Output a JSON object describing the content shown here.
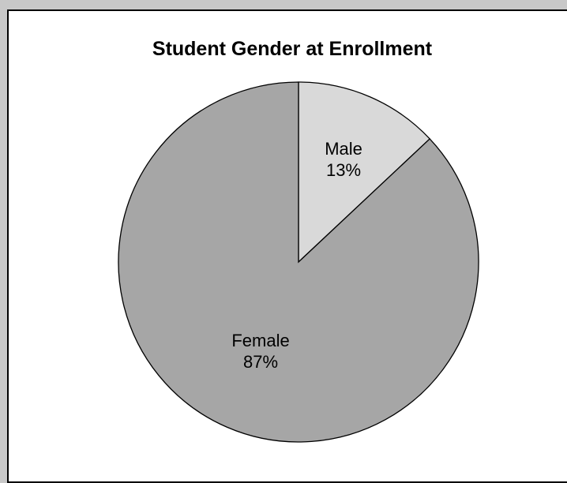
{
  "chart_data": {
    "type": "pie",
    "title": "Student Gender at Enrollment",
    "slices": [
      {
        "label": "Male",
        "value": 13,
        "value_label": "13%",
        "color": "#d9d9d9"
      },
      {
        "label": "Female",
        "value": 87,
        "value_label": "87%",
        "color": "#a6a6a6"
      }
    ],
    "legend": "none",
    "start_angle": "12 o'clock, clockwise"
  }
}
